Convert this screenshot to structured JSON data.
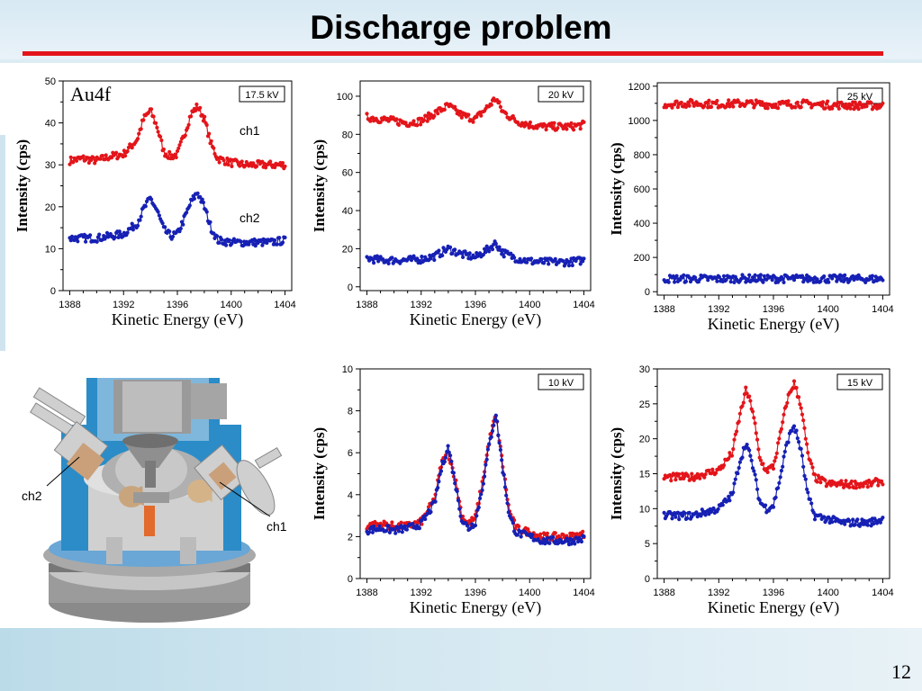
{
  "slide": {
    "title": "Discharge problem",
    "page_number": "12"
  },
  "diagram": {
    "label_ch1": "ch1",
    "label_ch2": "ch2"
  },
  "colors": {
    "ch1": "#e3151a",
    "ch2": "#1620b4",
    "title_rule": "#e3151a"
  },
  "chart_data": [
    {
      "type": "line",
      "voltage": "17.5 kV",
      "corner_label": "Au4f",
      "xlabel": "Kinetic Energy (eV)",
      "ylabel": "Intensity (cps)",
      "xlim": [
        1387.5,
        1404.5
      ],
      "ylim": [
        0,
        50
      ],
      "xticks": [
        1388,
        1392,
        1396,
        1400,
        1404
      ],
      "yticks": [
        0,
        10,
        20,
        30,
        40,
        50
      ],
      "series": [
        {
          "name": "ch1",
          "color": "#e3151a",
          "x": [
            1388,
            1389,
            1390,
            1391,
            1392,
            1393,
            1393.5,
            1394,
            1394.5,
            1395,
            1395.5,
            1396,
            1396.5,
            1397,
            1397.5,
            1398,
            1398.5,
            1399,
            1400,
            1401,
            1402,
            1403,
            1404
          ],
          "y": [
            31,
            31.5,
            31,
            32,
            32.5,
            36,
            41,
            43,
            39,
            33,
            32,
            32.5,
            37,
            42,
            44,
            41,
            35,
            31.5,
            30.5,
            30,
            30,
            30,
            30
          ]
        },
        {
          "name": "ch2",
          "color": "#1620b4",
          "x": [
            1388,
            1389,
            1390,
            1391,
            1392,
            1393,
            1393.5,
            1394,
            1394.5,
            1395,
            1395.5,
            1396,
            1396.5,
            1397,
            1397.5,
            1398,
            1398.5,
            1399,
            1400,
            1401,
            1402,
            1403,
            1404
          ],
          "y": [
            12.5,
            12.5,
            12.5,
            13,
            13.5,
            16,
            19.5,
            22,
            19,
            14.5,
            13,
            13.5,
            17,
            21,
            23.5,
            20,
            15,
            12,
            11.5,
            11.5,
            11.5,
            11.5,
            12
          ]
        }
      ],
      "series_labels": [
        "ch1",
        "ch2"
      ]
    },
    {
      "type": "line",
      "voltage": "20 kV",
      "xlabel": "Kinetic Energy (eV)",
      "ylabel": "Intensity (cps)",
      "xlim": [
        1387.5,
        1404.5
      ],
      "ylim": [
        -2,
        108
      ],
      "xticks": [
        1388,
        1392,
        1396,
        1400,
        1404
      ],
      "yticks": [
        0,
        20,
        40,
        60,
        80,
        100
      ],
      "series": [
        {
          "name": "ch1",
          "color": "#e3151a",
          "x": [
            1388,
            1389,
            1390,
            1391,
            1392,
            1393,
            1394,
            1395,
            1396,
            1397,
            1397.5,
            1398,
            1399,
            1400,
            1401,
            1402,
            1403,
            1404
          ],
          "y": [
            89,
            88,
            87,
            86,
            87,
            91,
            95,
            90,
            88,
            95,
            99,
            92,
            87,
            85,
            84,
            84,
            84,
            85
          ]
        },
        {
          "name": "ch2",
          "color": "#1620b4",
          "x": [
            1388,
            1389,
            1390,
            1391,
            1392,
            1393,
            1394,
            1395,
            1396,
            1397,
            1397.5,
            1398,
            1399,
            1400,
            1401,
            1402,
            1403,
            1404
          ],
          "y": [
            15,
            14,
            14,
            14,
            14.5,
            16,
            20,
            17,
            15.5,
            20,
            23,
            18,
            15,
            13.5,
            13,
            13,
            13,
            14
          ]
        }
      ]
    },
    {
      "type": "line",
      "voltage": "25 kV",
      "xlabel": "Kinetic Energy (eV)",
      "ylabel": "Intensity (cps)",
      "xlim": [
        1387.5,
        1404.5
      ],
      "ylim": [
        -20,
        1220
      ],
      "xticks": [
        1388,
        1392,
        1396,
        1400,
        1404
      ],
      "yticks": [
        0,
        200,
        400,
        600,
        800,
        1000,
        1200
      ],
      "series": [
        {
          "name": "ch1",
          "color": "#e3151a",
          "x": [
            1388,
            1390,
            1392,
            1394,
            1396,
            1398,
            1400,
            1402,
            1404
          ],
          "y": [
            1095,
            1100,
            1095,
            1100,
            1092,
            1098,
            1090,
            1088,
            1085
          ]
        },
        {
          "name": "ch2",
          "color": "#1620b4",
          "x": [
            1388,
            1390,
            1392,
            1394,
            1396,
            1398,
            1400,
            1402,
            1404
          ],
          "y": [
            75,
            76,
            75,
            77,
            76,
            76,
            75,
            75,
            75
          ]
        }
      ]
    },
    {
      "type": "line",
      "voltage": "10 kV",
      "xlabel": "Kinetic Energy (eV)",
      "ylabel": "Intensity (cps)",
      "xlim": [
        1387.5,
        1404.5
      ],
      "ylim": [
        0,
        10
      ],
      "xticks": [
        1388,
        1392,
        1396,
        1400,
        1404
      ],
      "yticks": [
        0,
        2,
        4,
        6,
        8,
        10
      ],
      "series": [
        {
          "name": "ch1",
          "color": "#e3151a",
          "x": [
            1388,
            1389,
            1390,
            1391,
            1392,
            1393,
            1393.5,
            1394,
            1394.5,
            1395,
            1395.5,
            1396,
            1396.5,
            1397,
            1397.5,
            1398,
            1398.5,
            1399,
            1400,
            1401,
            1402,
            1403,
            1404
          ],
          "y": [
            2.5,
            2.6,
            2.5,
            2.5,
            2.7,
            3.8,
            5.5,
            6.0,
            4.8,
            3.0,
            2.6,
            2.9,
            4.5,
            6.5,
            7.8,
            5.5,
            3.2,
            2.4,
            2.2,
            2.0,
            2.0,
            2.0,
            2.1
          ]
        },
        {
          "name": "ch2",
          "color": "#1620b4",
          "x": [
            1388,
            1389,
            1390,
            1391,
            1392,
            1393,
            1393.5,
            1394,
            1394.5,
            1395,
            1395.5,
            1396,
            1396.5,
            1397,
            1397.5,
            1398,
            1398.5,
            1399,
            1400,
            1401,
            1402,
            1403,
            1404
          ],
          "y": [
            2.3,
            2.4,
            2.3,
            2.4,
            2.6,
            3.6,
            5.3,
            6.3,
            4.6,
            2.8,
            2.4,
            2.7,
            4.3,
            6.3,
            7.9,
            5.3,
            3.0,
            2.2,
            2.0,
            1.8,
            1.8,
            1.8,
            1.9
          ]
        }
      ]
    },
    {
      "type": "line",
      "voltage": "15 kV",
      "xlabel": "Kinetic Energy (eV)",
      "ylabel": "Intensity (cps)",
      "xlim": [
        1387.5,
        1404.5
      ],
      "ylim": [
        0,
        30
      ],
      "xticks": [
        1388,
        1392,
        1396,
        1400,
        1404
      ],
      "yticks": [
        0,
        5,
        10,
        15,
        20,
        25,
        30
      ],
      "series": [
        {
          "name": "ch1",
          "color": "#e3151a",
          "x": [
            1388,
            1389,
            1390,
            1391,
            1392,
            1393,
            1393.5,
            1394,
            1394.5,
            1395,
            1395.5,
            1396,
            1396.5,
            1397,
            1397.5,
            1398,
            1398.5,
            1399,
            1400,
            1401,
            1402,
            1403,
            1404
          ],
          "y": [
            14.5,
            14.5,
            14.5,
            15,
            15.5,
            18,
            23,
            27,
            24,
            17,
            15.5,
            16,
            20.5,
            25.5,
            28,
            25,
            18,
            14.5,
            13.5,
            13.5,
            13.5,
            13.5,
            14
          ]
        },
        {
          "name": "ch2",
          "color": "#1620b4",
          "x": [
            1388,
            1389,
            1390,
            1391,
            1392,
            1393,
            1393.5,
            1394,
            1394.5,
            1395,
            1395.5,
            1396,
            1396.5,
            1397,
            1397.5,
            1398,
            1398.5,
            1399,
            1400,
            1401,
            1402,
            1403,
            1404
          ],
          "y": [
            9,
            9,
            9,
            9.5,
            10,
            12,
            16.5,
            19.5,
            16,
            11,
            10,
            10.5,
            14.5,
            19.5,
            22,
            18.5,
            12,
            9,
            8.5,
            8,
            8,
            8,
            8.5
          ]
        }
      ]
    }
  ]
}
